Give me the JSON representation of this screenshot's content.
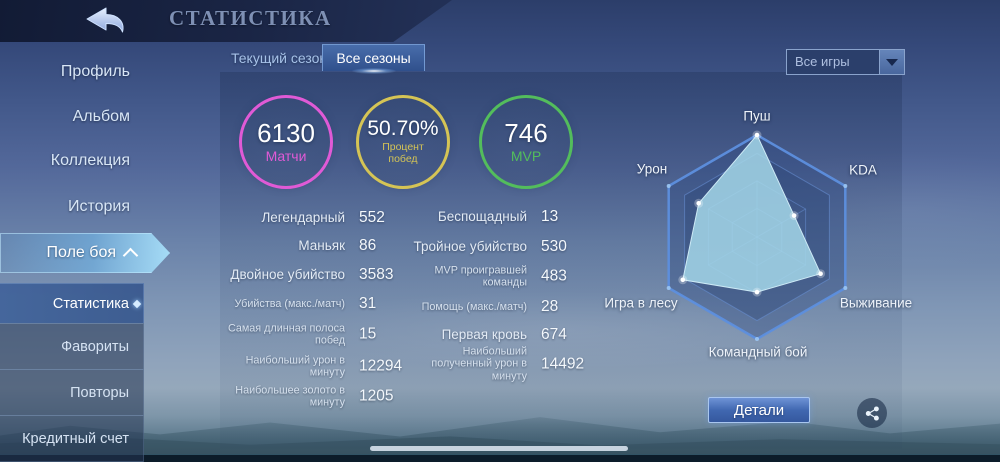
{
  "header": {
    "title": "СТАТИСТИКА"
  },
  "icons": {
    "back": "return-arrow",
    "battlefield_chevron": "chevron-up",
    "dropdown_chevron": "chevron-down",
    "selected_marker": "diamond",
    "share": "share-nodes"
  },
  "sidebar": {
    "items": [
      {
        "id": "profile",
        "label": "Профиль"
      },
      {
        "id": "album",
        "label": "Альбом"
      },
      {
        "id": "collection",
        "label": "Коллекция"
      },
      {
        "id": "history",
        "label": "История"
      },
      {
        "id": "battlefield",
        "label": "Поле боя",
        "expanded": true
      }
    ],
    "subitems": [
      {
        "id": "statistics",
        "label": "Статистика",
        "selected": true
      },
      {
        "id": "favorites",
        "label": "Фавориты",
        "selected": false
      },
      {
        "id": "replays",
        "label": "Повторы",
        "selected": false
      },
      {
        "id": "credit",
        "label": "Кредитный счет",
        "selected": false
      }
    ]
  },
  "tabs": [
    {
      "id": "current-season",
      "label": "Текущий сезон",
      "active": false
    },
    {
      "id": "all-seasons",
      "label": "Все сезоны",
      "active": true
    }
  ],
  "filter": {
    "value": "Все игры"
  },
  "summary_circles": [
    {
      "value": "6130",
      "label": "Матчи",
      "color": "#e05ad6"
    },
    {
      "value": "50.70%",
      "label": "Процент побед",
      "color": "#d5c455"
    },
    {
      "value": "746",
      "label": "MVP",
      "color": "#53bd5c"
    }
  ],
  "stats_left": [
    {
      "label": "Легендарный",
      "value": "552",
      "size": "normal"
    },
    {
      "label": "Маньяк",
      "value": "86",
      "size": "normal"
    },
    {
      "label": "Двойное убийство",
      "value": "3583",
      "size": "normal"
    },
    {
      "label": "Убийства (макс./матч)",
      "value": "31",
      "size": "small"
    },
    {
      "label": "Самая длинная полоса побед",
      "value": "15",
      "size": "small"
    },
    {
      "label": "Наибольший урон в минуту",
      "value": "12294",
      "size": "small"
    },
    {
      "label": "Наибольшее золото в минуту",
      "value": "1205",
      "size": "small"
    }
  ],
  "stats_right": [
    {
      "label": "Беспощадный",
      "value": "13",
      "size": "normal"
    },
    {
      "label": "Тройное убийство",
      "value": "530",
      "size": "normal"
    },
    {
      "label": "MVP проигравшей команды",
      "value": "483",
      "size": "small"
    },
    {
      "label": "Помощь (макс./матч)",
      "value": "28",
      "size": "small"
    },
    {
      "label": "Первая кровь",
      "value": "674",
      "size": "normal"
    },
    {
      "label": "Наибольший полученный урон в минуту",
      "value": "14492",
      "size": "small"
    }
  ],
  "chart_data": {
    "type": "radar",
    "title": "",
    "categories": [
      "Пуш",
      "KDA",
      "Выживание",
      "Командный бой",
      "Игра в лесу",
      "Урон"
    ],
    "values": [
      1.0,
      0.42,
      0.72,
      0.54,
      0.84,
      0.66
    ],
    "value_range": [
      0,
      1
    ],
    "grid_levels": [
      1.0,
      0.82,
      0.55,
      0.28
    ],
    "grid": "hexagonal",
    "legend": "none",
    "fill_color": "#a5d7e9",
    "grid_color": "#5d8fde"
  },
  "actions": {
    "details_label": "Детали"
  }
}
